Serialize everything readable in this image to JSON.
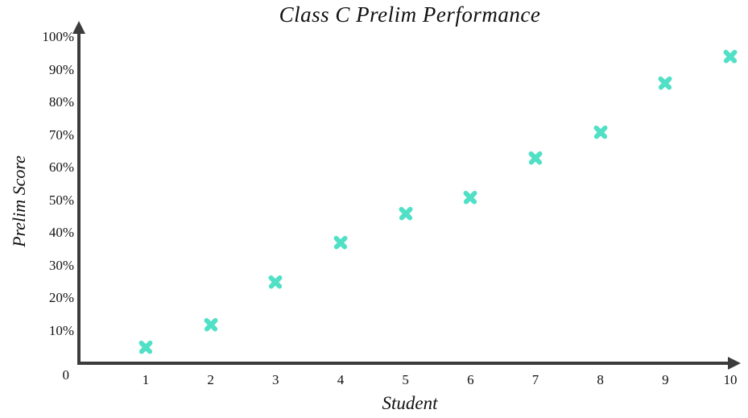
{
  "page": {
    "background": "#ffffff"
  },
  "chart_data": {
    "type": "scatter",
    "title": "Class C Prelim Performance",
    "xlabel": "Student",
    "ylabel": "Prelim Score",
    "x": [
      1,
      2,
      3,
      4,
      5,
      6,
      7,
      8,
      9,
      10
    ],
    "values": [
      5,
      12,
      25,
      37,
      46,
      51,
      63,
      71,
      86,
      94
    ],
    "series_name": "Prelim Score",
    "xlim": [
      0,
      10.2
    ],
    "ylim": [
      0,
      100
    ],
    "grid": false,
    "legend": "none",
    "marker": {
      "shape": "x-cross",
      "color": "#50E0C6"
    },
    "axis_color": "#3C3C3C",
    "text_color": "#111111",
    "x_axis": {
      "ticks": [
        {
          "label": "1",
          "value": 1
        },
        {
          "label": "2",
          "value": 2
        },
        {
          "label": "3",
          "value": 3
        },
        {
          "label": "4",
          "value": 4
        },
        {
          "label": "5",
          "value": 5
        },
        {
          "label": "6",
          "value": 6
        },
        {
          "label": "7",
          "value": 7
        },
        {
          "label": "8",
          "value": 8
        },
        {
          "label": "9",
          "value": 9
        },
        {
          "label": "10",
          "value": 10
        }
      ]
    },
    "y_axis": {
      "ticks": [
        {
          "label": "0",
          "value": 0
        },
        {
          "label": "10%",
          "value": 10
        },
        {
          "label": "20%",
          "value": 20
        },
        {
          "label": "30%",
          "value": 30
        },
        {
          "label": "40%",
          "value": 40
        },
        {
          "label": "50%",
          "value": 50
        },
        {
          "label": "60%",
          "value": 60
        },
        {
          "label": "70%",
          "value": 70
        },
        {
          "label": "80%",
          "value": 80
        },
        {
          "label": "90%",
          "value": 90
        },
        {
          "label": "100%",
          "value": 100
        }
      ]
    }
  }
}
